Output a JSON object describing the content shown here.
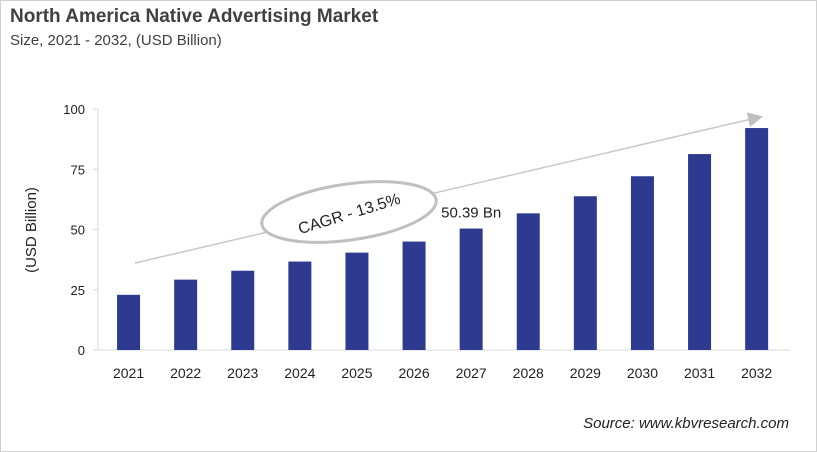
{
  "chart_data": {
    "type": "bar",
    "title": "North America Native Advertising Market",
    "subtitle": "Size, 2021 - 2032, (USD Billion)",
    "xlabel": "",
    "ylabel": "(USD Billion)",
    "ylim": [
      0,
      100
    ],
    "yticks": [
      0,
      25,
      50,
      75,
      100
    ],
    "grid": false,
    "categories": [
      "2021",
      "2022",
      "2023",
      "2024",
      "2025",
      "2026",
      "2027",
      "2028",
      "2029",
      "2030",
      "2031",
      "2032"
    ],
    "values": [
      22.9,
      29.2,
      32.9,
      36.7,
      40.4,
      45.0,
      50.39,
      56.7,
      63.8,
      72.1,
      81.3,
      92.1
    ],
    "bar_color": "#2e3a8f",
    "annotations": {
      "cagr": "CAGR - 13.5%",
      "data_label": "50.39 Bn",
      "data_label_category": "2027"
    },
    "source": "Source: www.kbvresearch.com"
  }
}
